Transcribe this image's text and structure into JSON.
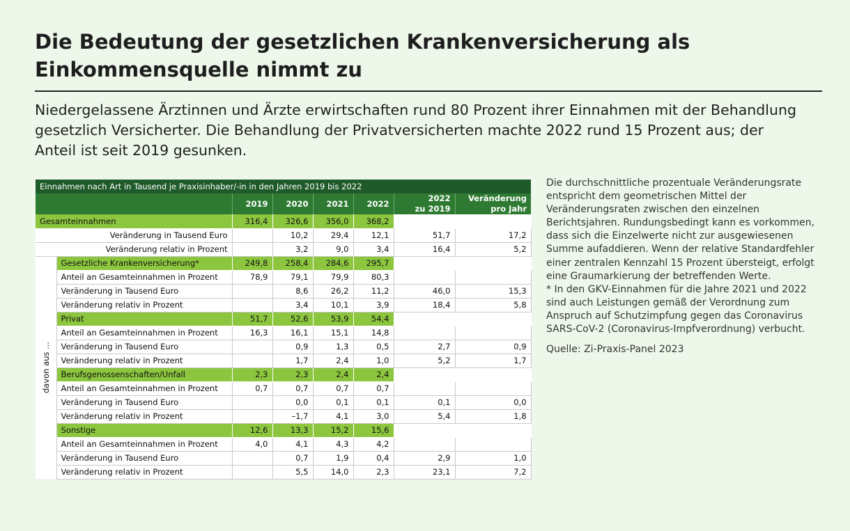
{
  "title": "Die Bedeutung der gesetzlichen Krankenversicherung als Einkommensquelle nimmt zu",
  "subtitle": "Niedergelassene Ärztinnen und Ärzte erwirtschaften rund 80 Prozent ihrer Einnahmen mit der Behandlung gesetzlich Versicherter. Die Behandlung der Privatversicherten machte 2022 rund 15 Prozent aus; der Anteil ist seit 2019 gesunken.",
  "note": {
    "text": "Die durchschnittliche prozentuale Veränderungsrate entspricht dem geometrischen Mittel der Veränderungsraten zwischen den einzelnen Berichtsjahren. Rundungsbedingt kann es vorkommen, dass sich die Einzelwerte nicht zur ausgewiesenen Summe aufaddieren. Wenn der relative Standardfehler einer zentralen Kennzahl 15 Prozent übersteigt, erfolgt eine Graumarkierung der betreffenden Werte.",
    "footnote": "* In den GKV-Einnahmen für die Jahre 2021 und 2022 sind auch Leistungen gemäß der Verordnung zum Anspruch auf Schutzimpfung gegen das Coronavirus SARS-CoV-2 (Coronavirus-Impfverordnung) verbucht.",
    "source": "Quelle: Zi-Praxis-Panel 2023"
  },
  "table": {
    "caption": "Einnahmen nach Art in Tausend je Praxisinhaber/-in in den Jahren 2019 bis 2022",
    "headers": [
      "2019",
      "2020",
      "2021",
      "2022",
      "2022\nzu 2019",
      "Veränderung\npro Jahr"
    ],
    "side_label": "davon aus ...",
    "total": {
      "label": "Gesamteinnahmen",
      "values": [
        "316,4",
        "326,6",
        "356,0",
        "368,2",
        "",
        ""
      ],
      "rows": [
        {
          "label": "Veränderung in Tausend Euro",
          "values": [
            "",
            "10,2",
            "29,4",
            "12,1",
            "51,7",
            "17,2"
          ]
        },
        {
          "label": "Veränderung relativ in Prozent",
          "values": [
            "",
            "3,2",
            "9,0",
            "3,4",
            "16,4",
            "5,2"
          ]
        }
      ]
    },
    "groups": [
      {
        "label": "Gesetzliche Krankenversicherung*",
        "values": [
          "249,8",
          "258,4",
          "284,6",
          "295,7",
          "",
          ""
        ],
        "rows": [
          {
            "label": "Anteil an Gesamteinnahmen in Prozent",
            "values": [
              "78,9",
              "79,1",
              "79,9",
              "80,3",
              "",
              ""
            ]
          },
          {
            "label": "Veränderung in Tausend Euro",
            "values": [
              "",
              "8,6",
              "26,2",
              "11,2",
              "46,0",
              "15,3"
            ]
          },
          {
            "label": "Veränderung relativ in Prozent",
            "values": [
              "",
              "3,4",
              "10,1",
              "3,9",
              "18,4",
              "5,8"
            ]
          }
        ]
      },
      {
        "label": "Privat",
        "values": [
          "51,7",
          "52,6",
          "53,9",
          "54,4",
          "",
          ""
        ],
        "rows": [
          {
            "label": "Anteil an Gesamteinnahmen in Prozent",
            "values": [
              "16,3",
              "16,1",
              "15,1",
              "14,8",
              "",
              ""
            ]
          },
          {
            "label": "Veränderung in Tausend Euro",
            "values": [
              "",
              "0,9",
              "1,3",
              "0,5",
              "2,7",
              "0,9"
            ]
          },
          {
            "label": "Veränderung relativ in Prozent",
            "values": [
              "",
              "1,7",
              "2,4",
              "1,0",
              "5,2",
              "1,7"
            ]
          }
        ]
      },
      {
        "label": "Berufsgenossenschaften/Unfall",
        "values": [
          "2,3",
          "2,3",
          "2,4",
          "2,4",
          "",
          ""
        ],
        "rows": [
          {
            "label": "Anteil an Gesamteinnahmen in Prozent",
            "values": [
              "0,7",
              "0,7",
              "0,7",
              "0,7",
              "",
              ""
            ]
          },
          {
            "label": "Veränderung in Tausend Euro",
            "values": [
              "",
              "0,0",
              "0,1",
              "0,1",
              "0,1",
              "0,0"
            ]
          },
          {
            "label": "Veränderung relativ in Prozent",
            "values": [
              "",
              "–1,7",
              "4,1",
              "3,0",
              "5,4",
              "1,8"
            ]
          }
        ]
      },
      {
        "label": "Sonstige",
        "values": [
          "12,6",
          "13,3",
          "15,2",
          "15,6",
          "",
          ""
        ],
        "rows": [
          {
            "label": "Anteil an Gesamteinnahmen in Prozent",
            "values": [
              "4,0",
              "4,1",
              "4,3",
              "4,2",
              "",
              ""
            ]
          },
          {
            "label": "Veränderung in Tausend Euro",
            "values": [
              "",
              "0,7",
              "1,9",
              "0,4",
              "2,9",
              "1,0"
            ]
          },
          {
            "label": "Veränderung relativ in Prozent",
            "values": [
              "",
              "5,5",
              "14,0",
              "2,3",
              "23,1",
              "7,2"
            ]
          }
        ]
      }
    ]
  },
  "colors": {
    "background": "#eef8ea",
    "caption_bg": "#1f5a2a",
    "header_bg": "#2e7a32",
    "highlight_row": "#8cc63f"
  }
}
